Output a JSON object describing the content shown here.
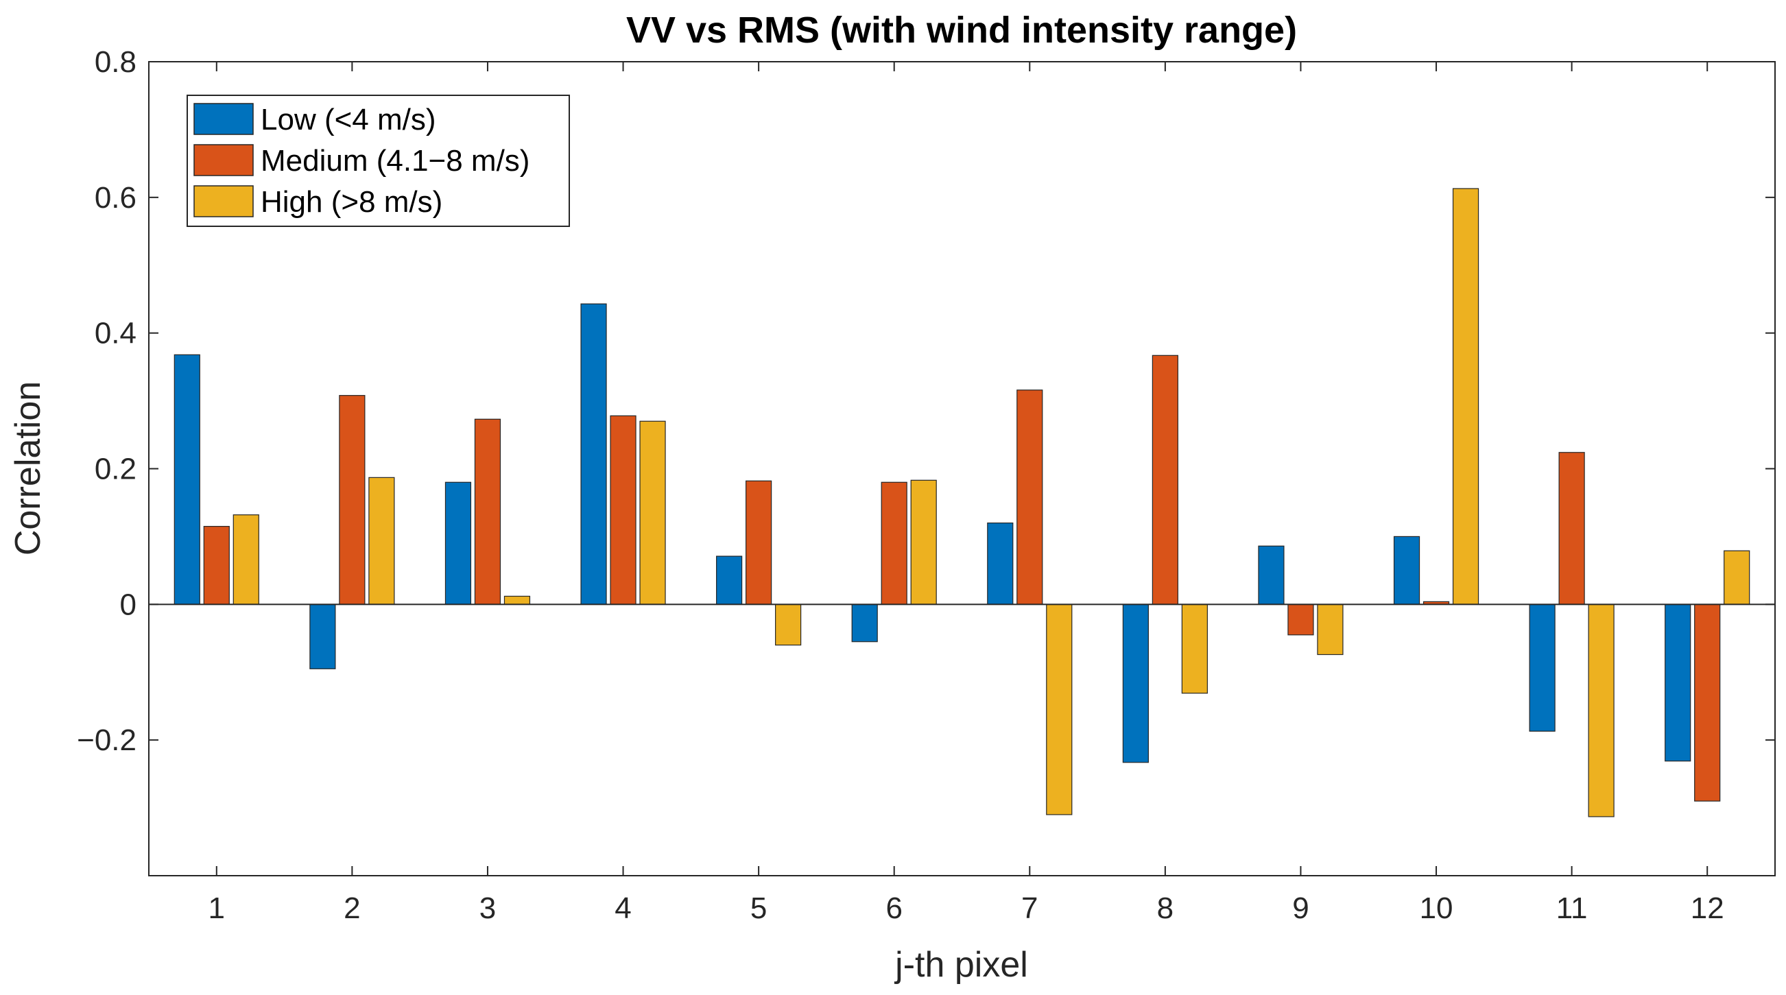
{
  "chart_data": {
    "type": "bar",
    "title": "VV vs RMS (with wind intensity range)",
    "xlabel": "j-th pixel",
    "ylabel": "Correlation",
    "categories": [
      "1",
      "2",
      "3",
      "4",
      "5",
      "6",
      "7",
      "8",
      "9",
      "10",
      "11",
      "12"
    ],
    "ylim": [
      -0.4,
      0.8
    ],
    "yticks": [
      -0.2,
      0,
      0.2,
      0.4,
      0.6,
      0.8
    ],
    "ytick_labels": [
      "−0.2",
      "0",
      "0.2",
      "0.4",
      "0.6",
      "0.8"
    ],
    "grid": false,
    "legend_position": "top-left",
    "series": [
      {
        "name": "Low (<4 m/s)",
        "color": "#0072BD",
        "values": [
          0.368,
          -0.095,
          0.18,
          0.443,
          0.071,
          -0.055,
          0.12,
          -0.233,
          0.086,
          0.1,
          -0.187,
          -0.231
        ]
      },
      {
        "name": "Medium (4.1−8 m/s)",
        "color": "#D95319",
        "values": [
          0.115,
          0.308,
          0.273,
          0.278,
          0.182,
          0.18,
          0.316,
          0.367,
          -0.045,
          0.004,
          0.224,
          -0.29
        ]
      },
      {
        "name": "High (>8 m/s)",
        "color": "#EDB120",
        "values": [
          0.132,
          0.187,
          0.012,
          0.27,
          -0.06,
          0.183,
          -0.31,
          -0.131,
          -0.074,
          0.613,
          -0.313,
          0.079
        ]
      }
    ]
  }
}
